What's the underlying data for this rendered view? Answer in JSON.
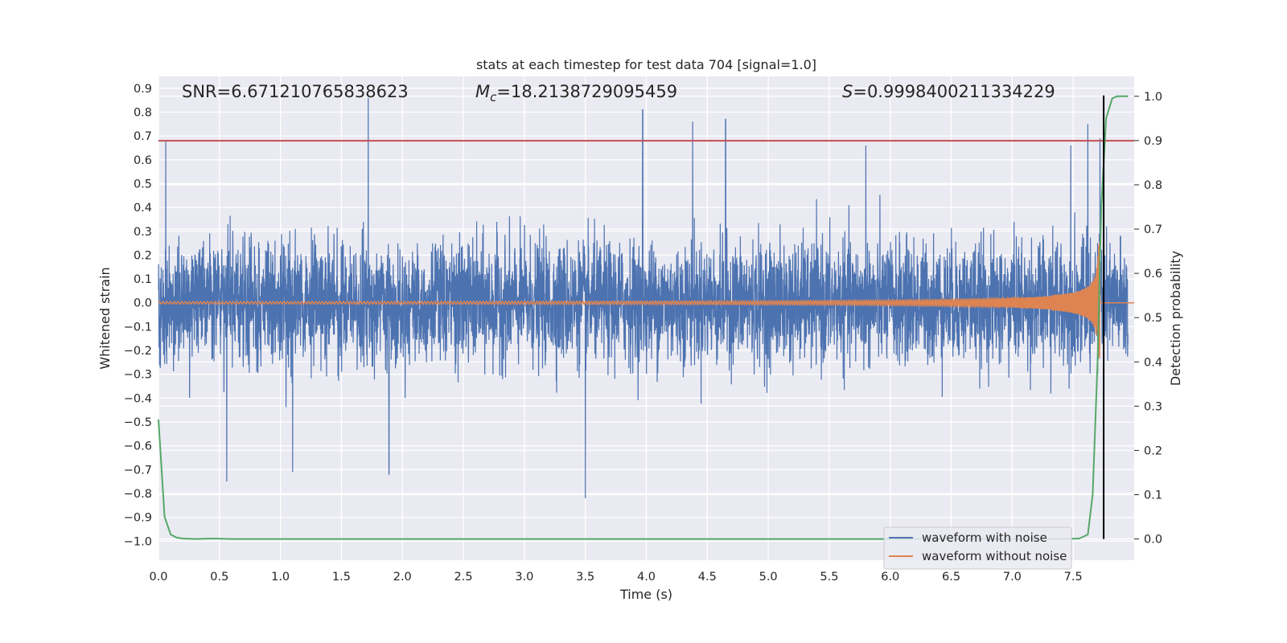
{
  "chart_data": {
    "type": "line",
    "title": "stats at each timestep for test data 704 [signal=1.0]",
    "xlabel": "Time (s)",
    "ylabel": "Whitened strain",
    "ylabel_right": "Detection probability",
    "xlim": [
      0.0,
      8.0
    ],
    "ylim": [
      -1.08,
      0.95
    ],
    "ylim_right": [
      -0.048,
      1.045
    ],
    "xticks": [
      "0.0",
      "0.5",
      "1.0",
      "1.5",
      "2.0",
      "2.5",
      "3.0",
      "3.5",
      "4.0",
      "4.5",
      "5.0",
      "5.5",
      "6.0",
      "6.5",
      "7.0",
      "7.5"
    ],
    "xtick_values": [
      0,
      0.5,
      1,
      1.5,
      2,
      2.5,
      3,
      3.5,
      4,
      4.5,
      5,
      5.5,
      6,
      6.5,
      7,
      7.5
    ],
    "yticks": [
      "0.9",
      "0.8",
      "0.7",
      "0.6",
      "0.5",
      "0.4",
      "0.3",
      "0.2",
      "0.1",
      "0.0",
      "−0.1",
      "−0.2",
      "−0.3",
      "−0.4",
      "−0.5",
      "−0.6",
      "−0.7",
      "−0.8",
      "−0.9",
      "−1.0"
    ],
    "ytick_values": [
      0.9,
      0.8,
      0.7,
      0.6,
      0.5,
      0.4,
      0.3,
      0.2,
      0.1,
      0.0,
      -0.1,
      -0.2,
      -0.3,
      -0.4,
      -0.5,
      -0.6,
      -0.7,
      -0.8,
      -0.9,
      -1.0
    ],
    "yticks_right": [
      "1.0",
      "0.9",
      "0.8",
      "0.7",
      "0.6",
      "0.5",
      "0.4",
      "0.3",
      "0.2",
      "0.1",
      "0.0"
    ],
    "ytick_right_values": [
      1.0,
      0.9,
      0.8,
      0.7,
      0.6,
      0.5,
      0.4,
      0.3,
      0.2,
      0.1,
      0.0
    ],
    "stats": {
      "snr_label": "SNR=6.671210765838623",
      "mc_prefix": "M",
      "mc_sub": "c",
      "mc_value": "=18.2138729095459",
      "s_prefix": "S",
      "s_value": "=0.9998400211334229"
    },
    "threshold_line": {
      "y": 0.68,
      "color": "#c44e52"
    },
    "merger_marker": {
      "x": 7.75,
      "color": "#000000"
    },
    "series": [
      {
        "name": "waveform with noise",
        "color": "#4c72b0",
        "axis": "left",
        "description": "whitened strain with Gaussian noise, roughly within ±0.5 with peaks to 0.86 and −0.82",
        "noise_scale": 0.2,
        "peaks": [
          [
            0.06,
            0.68
          ],
          [
            0.56,
            -0.75
          ],
          [
            1.1,
            -0.71
          ],
          [
            1.72,
            0.86
          ],
          [
            1.89,
            -0.72
          ],
          [
            3.5,
            -0.82
          ],
          [
            3.97,
            0.81
          ],
          [
            4.38,
            0.76
          ],
          [
            4.65,
            0.77
          ],
          [
            5.8,
            0.66
          ],
          [
            7.48,
            0.66
          ],
          [
            7.62,
            0.75
          ],
          [
            7.72,
            0.69
          ]
        ]
      },
      {
        "name": "waveform without noise",
        "color": "#dd8452",
        "axis": "left",
        "description": "chirp signal with amplitude growing from ~0.005 to ~0.27 at merger near 7.72 s",
        "merger_time": 7.72,
        "peak_amplitude": 0.27
      },
      {
        "name": "detection probability",
        "color": "#55a868",
        "axis": "right",
        "x": [
          0.0,
          0.05,
          0.1,
          0.15,
          0.2,
          0.3,
          0.45,
          0.6,
          0.8,
          1.0,
          2.0,
          3.0,
          4.0,
          5.0,
          6.0,
          7.0,
          7.4,
          7.55,
          7.62,
          7.66,
          7.7,
          7.73,
          7.77,
          7.82,
          7.86,
          7.95
        ],
        "values": [
          0.27,
          0.05,
          0.01,
          0.003,
          0.001,
          0.0,
          0.001,
          0.0,
          0.0,
          0.0,
          0.0,
          0.0,
          0.0,
          0.0,
          0.0,
          0.0,
          0.0,
          0.001,
          0.01,
          0.1,
          0.4,
          0.75,
          0.95,
          0.995,
          1.0,
          1.0
        ]
      }
    ],
    "legend": {
      "position": "bottom-right",
      "entries": [
        "waveform with noise",
        "waveform without noise"
      ]
    },
    "grid": true
  }
}
